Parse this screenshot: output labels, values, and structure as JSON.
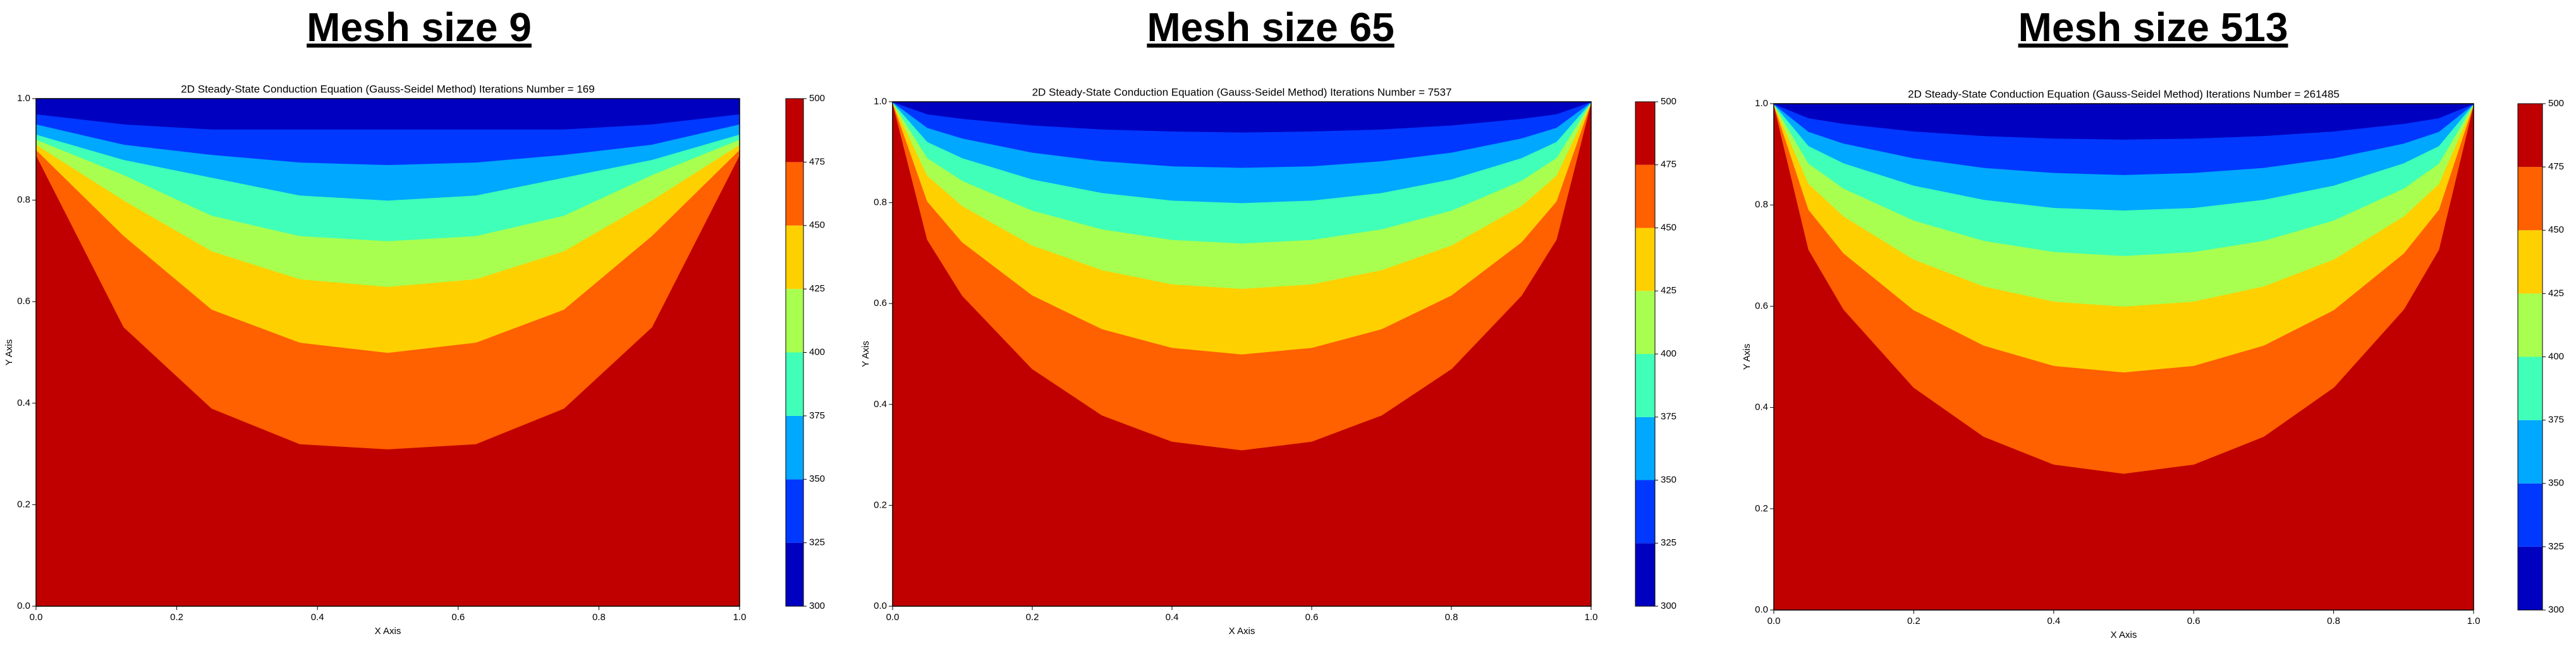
{
  "chart_data": [
    {
      "type": "contour",
      "heading": "Mesh size 9",
      "title": "2D Steady-State Conduction Equation (Gauss-Seidel Method) Iterations Number = 169",
      "xlabel": "X Axis",
      "ylabel": "Y Axis",
      "xlim": [
        0,
        1
      ],
      "ylim": [
        0,
        1
      ],
      "xticks": [
        {
          "value": 0,
          "label": "0.0"
        },
        {
          "value": 0.2,
          "label": "0.2"
        },
        {
          "value": 0.4,
          "label": "0.4"
        },
        {
          "value": 0.6,
          "label": "0.6"
        },
        {
          "value": 0.8,
          "label": "0.8"
        },
        {
          "value": 1,
          "label": "1.0"
        }
      ],
      "yticks": [
        {
          "value": 0,
          "label": "0.0"
        },
        {
          "value": 0.2,
          "label": "0.2"
        },
        {
          "value": 0.4,
          "label": "0.4"
        },
        {
          "value": 0.6,
          "label": "0.6"
        },
        {
          "value": 0.8,
          "label": "0.8"
        },
        {
          "value": 1,
          "label": "1.0"
        }
      ],
      "levels": [
        300,
        325,
        350,
        375,
        400,
        425,
        450,
        475,
        500
      ],
      "colors": [
        "#0000c0",
        "#0038ff",
        "#00a8ff",
        "#40ffb8",
        "#a8ff50",
        "#ffd000",
        "#ff6000",
        "#c00000"
      ],
      "contours": [
        {
          "level": 475,
          "x": [
            0,
            0.125,
            0.25,
            0.375,
            0.5,
            0.625,
            0.75,
            0.875,
            1
          ],
          "y": [
            0.89,
            0.55,
            0.39,
            0.32,
            0.31,
            0.32,
            0.39,
            0.55,
            0.89
          ]
        },
        {
          "level": 450,
          "x": [
            0,
            0.125,
            0.25,
            0.375,
            0.5,
            0.625,
            0.75,
            0.875,
            1
          ],
          "y": [
            0.9,
            0.73,
            0.585,
            0.52,
            0.5,
            0.52,
            0.585,
            0.73,
            0.9
          ]
        },
        {
          "level": 425,
          "x": [
            0,
            0.125,
            0.25,
            0.375,
            0.5,
            0.625,
            0.75,
            0.875,
            1
          ],
          "y": [
            0.91,
            0.8,
            0.7,
            0.645,
            0.63,
            0.645,
            0.7,
            0.8,
            0.91
          ]
        },
        {
          "level": 400,
          "x": [
            0,
            0.125,
            0.25,
            0.375,
            0.5,
            0.625,
            0.75,
            0.875,
            1
          ],
          "y": [
            0.92,
            0.85,
            0.77,
            0.73,
            0.72,
            0.73,
            0.77,
            0.85,
            0.92
          ]
        },
        {
          "level": 375,
          "x": [
            0,
            0.125,
            0.25,
            0.375,
            0.5,
            0.625,
            0.75,
            0.875,
            1
          ],
          "y": [
            0.93,
            0.88,
            0.845,
            0.81,
            0.8,
            0.81,
            0.845,
            0.88,
            0.93
          ]
        },
        {
          "level": 350,
          "x": [
            0,
            0.125,
            0.25,
            0.375,
            0.5,
            0.625,
            0.75,
            0.875,
            1
          ],
          "y": [
            0.95,
            0.91,
            0.89,
            0.875,
            0.87,
            0.875,
            0.89,
            0.91,
            0.95
          ]
        },
        {
          "level": 325,
          "x": [
            0,
            0.125,
            0.25,
            0.375,
            0.5,
            0.625,
            0.75,
            0.875,
            1
          ],
          "y": [
            0.97,
            0.95,
            0.94,
            0.94,
            0.94,
            0.94,
            0.94,
            0.95,
            0.97
          ]
        }
      ]
    },
    {
      "type": "contour",
      "heading": "Mesh size 65",
      "title": "2D Steady-State Conduction Equation (Gauss-Seidel Method) Iterations Number = 7537",
      "xlabel": "X Axis",
      "ylabel": "Y Axis",
      "xlim": [
        0,
        1
      ],
      "ylim": [
        0,
        1
      ],
      "xticks": [
        {
          "value": 0,
          "label": "0.0"
        },
        {
          "value": 0.2,
          "label": "0.2"
        },
        {
          "value": 0.4,
          "label": "0.4"
        },
        {
          "value": 0.6,
          "label": "0.6"
        },
        {
          "value": 0.8,
          "label": "0.8"
        },
        {
          "value": 1,
          "label": "1.0"
        }
      ],
      "yticks": [
        {
          "value": 0,
          "label": "0.0"
        },
        {
          "value": 0.2,
          "label": "0.2"
        },
        {
          "value": 0.4,
          "label": "0.4"
        },
        {
          "value": 0.6,
          "label": "0.6"
        },
        {
          "value": 0.8,
          "label": "0.8"
        },
        {
          "value": 1,
          "label": "1.0"
        }
      ],
      "levels": [
        300,
        325,
        350,
        375,
        400,
        425,
        450,
        475,
        500
      ],
      "colors": [
        "#0000c0",
        "#0038ff",
        "#00a8ff",
        "#40ffb8",
        "#a8ff50",
        "#ffd000",
        "#ff6000",
        "#c00000"
      ],
      "contours": [
        {
          "level": 475,
          "x": [
            0,
            0.05,
            0.1,
            0.2,
            0.3,
            0.4,
            0.5,
            0.6,
            0.7,
            0.8,
            0.9,
            0.95,
            1
          ],
          "y": [
            1,
            0.727,
            0.616,
            0.471,
            0.379,
            0.327,
            0.31,
            0.327,
            0.379,
            0.471,
            0.616,
            0.727,
            1
          ]
        },
        {
          "level": 450,
          "x": [
            0,
            0.05,
            0.1,
            0.2,
            0.3,
            0.4,
            0.5,
            0.6,
            0.7,
            0.8,
            0.9,
            0.95,
            1
          ],
          "y": [
            1,
            0.803,
            0.722,
            0.617,
            0.55,
            0.513,
            0.5,
            0.513,
            0.55,
            0.617,
            0.722,
            0.803,
            1
          ]
        },
        {
          "level": 425,
          "x": [
            0,
            0.05,
            0.1,
            0.2,
            0.3,
            0.4,
            0.5,
            0.6,
            0.7,
            0.8,
            0.9,
            0.95,
            1
          ],
          "y": [
            1,
            0.854,
            0.794,
            0.716,
            0.667,
            0.639,
            0.63,
            0.639,
            0.667,
            0.716,
            0.794,
            0.854,
            1
          ]
        },
        {
          "level": 400,
          "x": [
            0,
            0.05,
            0.1,
            0.2,
            0.3,
            0.4,
            0.5,
            0.6,
            0.7,
            0.8,
            0.9,
            0.95,
            1
          ],
          "y": [
            1,
            0.889,
            0.844,
            0.785,
            0.748,
            0.727,
            0.72,
            0.727,
            0.748,
            0.785,
            0.844,
            0.889,
            1
          ]
        },
        {
          "level": 375,
          "x": [
            0,
            0.05,
            0.1,
            0.2,
            0.3,
            0.4,
            0.5,
            0.6,
            0.7,
            0.8,
            0.9,
            0.95,
            1
          ],
          "y": [
            1,
            0.921,
            0.889,
            0.847,
            0.82,
            0.805,
            0.8,
            0.805,
            0.82,
            0.847,
            0.889,
            0.921,
            1
          ]
        },
        {
          "level": 350,
          "x": [
            0,
            0.05,
            0.1,
            0.2,
            0.3,
            0.4,
            0.5,
            0.6,
            0.7,
            0.8,
            0.9,
            0.95,
            1
          ],
          "y": [
            1,
            0.949,
            0.928,
            0.9,
            0.883,
            0.873,
            0.87,
            0.873,
            0.883,
            0.9,
            0.928,
            0.949,
            1
          ]
        },
        {
          "level": 325,
          "x": [
            0,
            0.05,
            0.1,
            0.2,
            0.3,
            0.4,
            0.5,
            0.6,
            0.7,
            0.8,
            0.9,
            0.95,
            1
          ],
          "y": [
            1,
            0.976,
            0.967,
            0.954,
            0.946,
            0.942,
            0.94,
            0.942,
            0.946,
            0.954,
            0.967,
            0.976,
            1
          ]
        }
      ]
    },
    {
      "type": "contour",
      "heading": "Mesh size 513",
      "title": "2D Steady-State Conduction Equation (Gauss-Seidel Method) Iterations Number = 261485",
      "xlabel": "X Axis",
      "ylabel": "Y Axis",
      "xlim": [
        0,
        1
      ],
      "ylim": [
        0,
        1
      ],
      "xticks": [
        {
          "value": 0,
          "label": "0.0"
        },
        {
          "value": 0.2,
          "label": "0.2"
        },
        {
          "value": 0.4,
          "label": "0.4"
        },
        {
          "value": 0.6,
          "label": "0.6"
        },
        {
          "value": 0.8,
          "label": "0.8"
        },
        {
          "value": 1,
          "label": "1.0"
        }
      ],
      "yticks": [
        {
          "value": 0,
          "label": "0.0"
        },
        {
          "value": 0.2,
          "label": "0.2"
        },
        {
          "value": 0.4,
          "label": "0.4"
        },
        {
          "value": 0.6,
          "label": "0.6"
        },
        {
          "value": 0.8,
          "label": "0.8"
        },
        {
          "value": 1,
          "label": "1.0"
        }
      ],
      "levels": [
        300,
        325,
        350,
        375,
        400,
        425,
        450,
        475,
        500
      ],
      "colors": [
        "#0000c0",
        "#0038ff",
        "#00a8ff",
        "#40ffb8",
        "#a8ff50",
        "#ffd000",
        "#ff6000",
        "#c00000"
      ],
      "contours": [
        {
          "level": 475,
          "x": [
            0,
            0.05,
            0.1,
            0.2,
            0.3,
            0.4,
            0.5,
            0.6,
            0.7,
            0.8,
            0.9,
            0.95,
            1
          ],
          "y": [
            1,
            0.712,
            0.594,
            0.44,
            0.343,
            0.288,
            0.27,
            0.288,
            0.343,
            0.44,
            0.594,
            0.712,
            1
          ]
        },
        {
          "level": 450,
          "x": [
            0,
            0.05,
            0.1,
            0.2,
            0.3,
            0.4,
            0.5,
            0.6,
            0.7,
            0.8,
            0.9,
            0.95,
            1
          ],
          "y": [
            1,
            0.791,
            0.705,
            0.593,
            0.523,
            0.483,
            0.47,
            0.483,
            0.523,
            0.593,
            0.705,
            0.791,
            1
          ]
        },
        {
          "level": 425,
          "x": [
            0,
            0.05,
            0.1,
            0.2,
            0.3,
            0.4,
            0.5,
            0.6,
            0.7,
            0.8,
            0.9,
            0.95,
            1
          ],
          "y": [
            1,
            0.842,
            0.778,
            0.693,
            0.64,
            0.61,
            0.6,
            0.61,
            0.64,
            0.693,
            0.778,
            0.842,
            1
          ]
        },
        {
          "level": 400,
          "x": [
            0,
            0.05,
            0.1,
            0.2,
            0.3,
            0.4,
            0.5,
            0.6,
            0.7,
            0.8,
            0.9,
            0.95,
            1
          ],
          "y": [
            1,
            0.882,
            0.833,
            0.77,
            0.73,
            0.708,
            0.7,
            0.708,
            0.73,
            0.77,
            0.833,
            0.882,
            1
          ]
        },
        {
          "level": 375,
          "x": [
            0,
            0.05,
            0.1,
            0.2,
            0.3,
            0.4,
            0.5,
            0.6,
            0.7,
            0.8,
            0.9,
            0.95,
            1
          ],
          "y": [
            1,
            0.917,
            0.883,
            0.839,
            0.811,
            0.795,
            0.79,
            0.795,
            0.811,
            0.839,
            0.883,
            0.917,
            1
          ]
        },
        {
          "level": 350,
          "x": [
            0,
            0.05,
            0.1,
            0.2,
            0.3,
            0.4,
            0.5,
            0.6,
            0.7,
            0.8,
            0.9,
            0.95,
            1
          ],
          "y": [
            1,
            0.945,
            0.922,
            0.893,
            0.874,
            0.864,
            0.86,
            0.864,
            0.874,
            0.893,
            0.922,
            0.945,
            1
          ]
        },
        {
          "level": 325,
          "x": [
            0,
            0.05,
            0.1,
            0.2,
            0.3,
            0.4,
            0.5,
            0.6,
            0.7,
            0.8,
            0.9,
            0.95,
            1
          ],
          "y": [
            1,
            0.972,
            0.961,
            0.946,
            0.937,
            0.932,
            0.93,
            0.932,
            0.937,
            0.946,
            0.961,
            0.972,
            1
          ]
        }
      ]
    }
  ]
}
